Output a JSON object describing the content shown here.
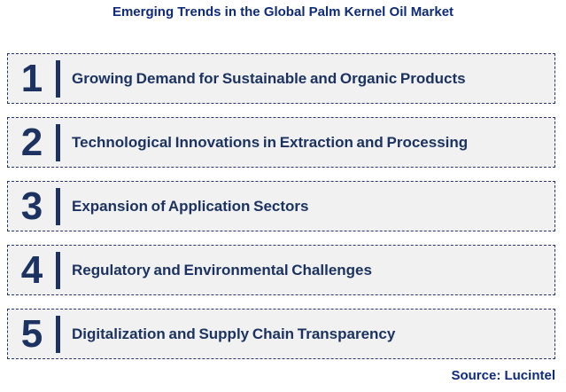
{
  "title": "Emerging Trends in the Global Palm Kernel Oil Market",
  "source": "Source: Lucintel",
  "colors": {
    "title_text": "#0e2a7a",
    "row_text": "#1c3362",
    "box_bg": "#f1f1f1",
    "box_border": "#27376b"
  },
  "chart_data": {
    "type": "table",
    "title": "Emerging Trends in the Global Palm Kernel Oil Market",
    "legend_position": "none",
    "categories": [
      "1",
      "2",
      "3",
      "4",
      "5"
    ],
    "values": [
      "Growing Demand for Sustainable and Organic Products",
      "Technological Innovations in Extraction and Processing",
      "Expansion of Application Sectors",
      "Regulatory and Environmental Challenges",
      "Digitalization and Supply Chain Transparency"
    ]
  },
  "rows": [
    {
      "number": "1",
      "label": "Growing Demand for Sustainable and Organic Products"
    },
    {
      "number": "2",
      "label": "Technological Innovations in Extraction and Processing"
    },
    {
      "number": "3",
      "label": "Expansion of Application Sectors"
    },
    {
      "number": "4",
      "label": "Regulatory and Environmental Challenges"
    },
    {
      "number": "5",
      "label": "Digitalization and Supply Chain Transparency"
    }
  ]
}
